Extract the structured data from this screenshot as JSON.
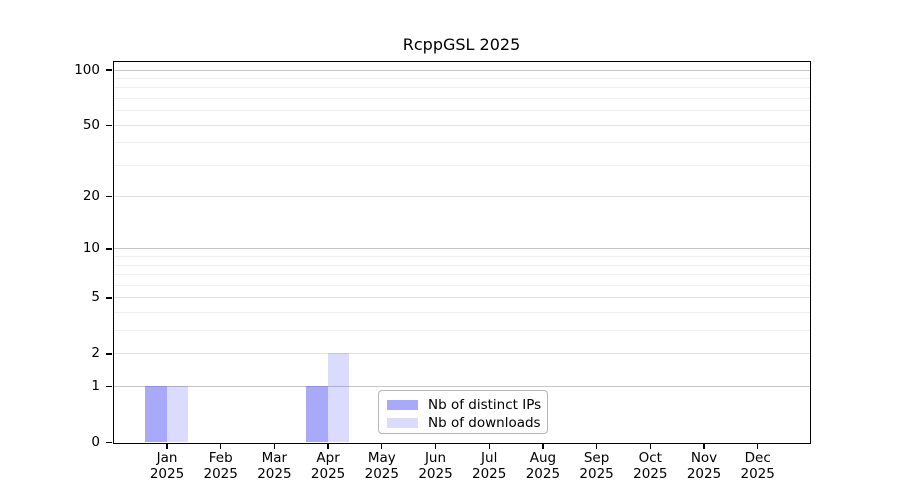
{
  "chart_data": {
    "type": "bar",
    "title": "RcppGSL 2025",
    "categories": [
      {
        "month": "Jan",
        "year": "2025"
      },
      {
        "month": "Feb",
        "year": "2025"
      },
      {
        "month": "Mar",
        "year": "2025"
      },
      {
        "month": "Apr",
        "year": "2025"
      },
      {
        "month": "May",
        "year": "2025"
      },
      {
        "month": "Jun",
        "year": "2025"
      },
      {
        "month": "Jul",
        "year": "2025"
      },
      {
        "month": "Aug",
        "year": "2025"
      },
      {
        "month": "Sep",
        "year": "2025"
      },
      {
        "month": "Oct",
        "year": "2025"
      },
      {
        "month": "Nov",
        "year": "2025"
      },
      {
        "month": "Dec",
        "year": "2025"
      }
    ],
    "series": [
      {
        "name": "Nb of distinct IPs",
        "color": "rgba(90,90,245,0.52)",
        "values": [
          1,
          0,
          0,
          1,
          0,
          0,
          0,
          0,
          0,
          0,
          0,
          0
        ]
      },
      {
        "name": "Nb of downloads",
        "color": "rgba(90,90,245,0.22)",
        "values": [
          1,
          0,
          0,
          2,
          0,
          0,
          0,
          0,
          0,
          0,
          0,
          0
        ]
      }
    ],
    "y_axis": {
      "scale": "log1p",
      "ticks": [
        0,
        1,
        2,
        5,
        10,
        20,
        50,
        100
      ],
      "minor_gridlines": [
        3,
        4,
        6,
        7,
        8,
        9,
        30,
        40,
        60,
        70,
        80,
        90
      ],
      "range": [
        0,
        112
      ]
    },
    "grid_colors": {
      "decade": "#c6c6c6",
      "major": "#e2e2e2",
      "minor": "#efefef"
    },
    "legend": {
      "position": "bottom-center",
      "border_color": "#b5b5b5"
    }
  }
}
